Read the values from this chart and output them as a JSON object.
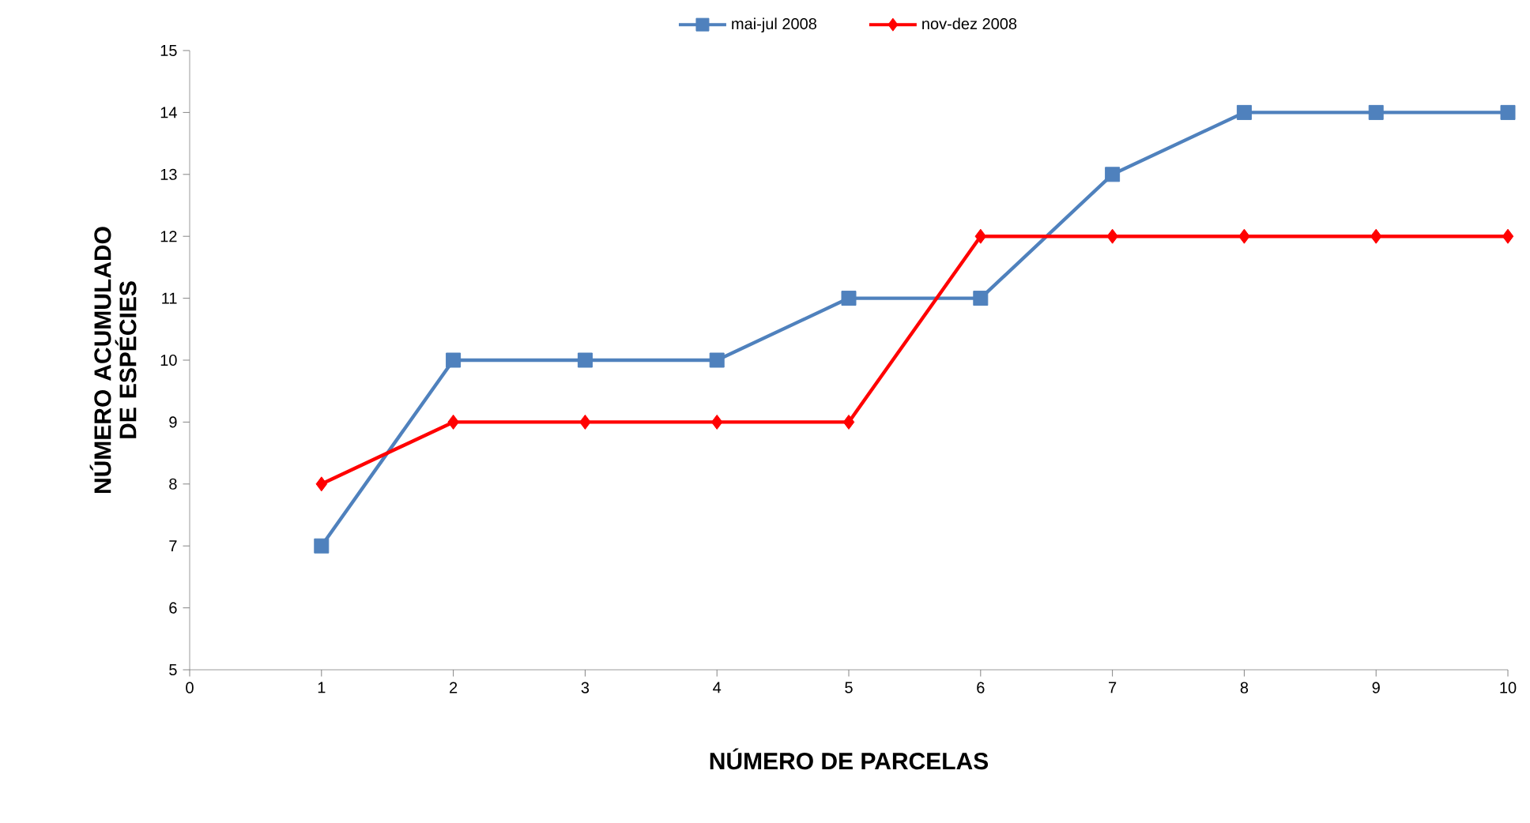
{
  "chart_data": {
    "type": "line",
    "xlabel": "NÚMERO DE PARCELAS",
    "ylabel": "NÚMERO ACUMULADO DE ESPÉCIES",
    "x": [
      1,
      2,
      3,
      4,
      5,
      6,
      7,
      8,
      9,
      10
    ],
    "series": [
      {
        "name": "mai-jul 2008",
        "color": "#4f81bd",
        "marker": "square",
        "values": [
          7,
          10,
          10,
          10,
          11,
          11,
          13,
          14,
          14,
          14
        ]
      },
      {
        "name": "nov-dez 2008",
        "color": "#ff0000",
        "marker": "diamond",
        "values": [
          8,
          9,
          9,
          9,
          9,
          12,
          12,
          12,
          12,
          12
        ]
      }
    ],
    "xlim": [
      0,
      10
    ],
    "xticks": [
      0,
      1,
      2,
      3,
      4,
      5,
      6,
      7,
      8,
      9,
      10
    ],
    "ylim": [
      5,
      15
    ],
    "yticks": [
      5,
      6,
      7,
      8,
      9,
      10,
      11,
      12,
      13,
      14,
      15
    ],
    "grid": false,
    "legend": "top",
    "line_style": "solid"
  }
}
